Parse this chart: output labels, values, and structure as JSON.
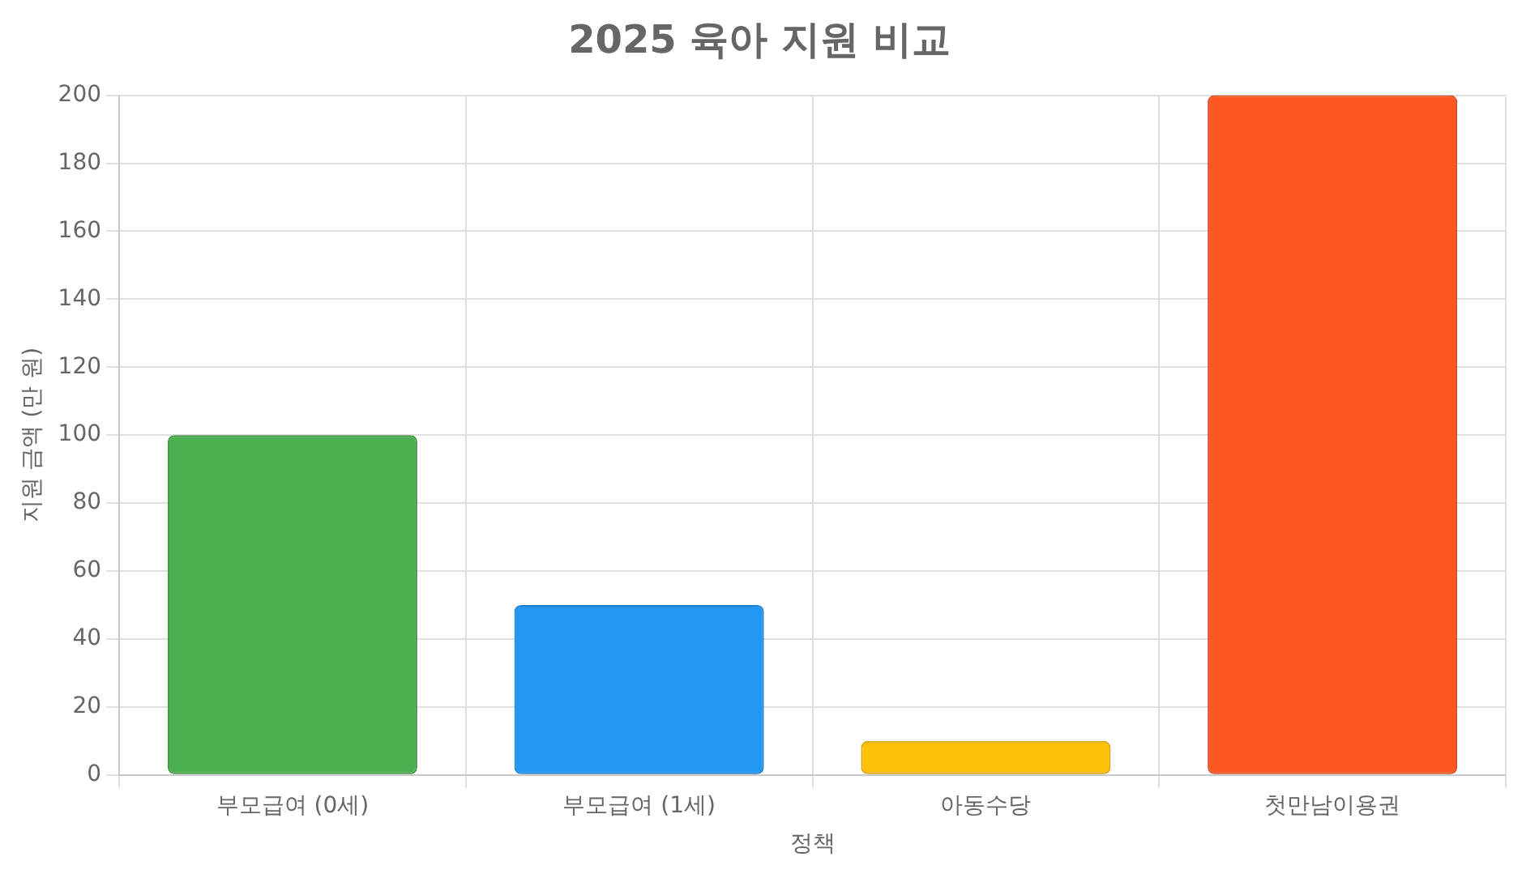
{
  "chart_data": {
    "type": "bar",
    "title": "2025 육아 지원 비교",
    "xlabel": "정책",
    "ylabel": "지원 금액 (만 원)",
    "categories": [
      "부모급여 (0세)",
      "부모급여 (1세)",
      "아동수당",
      "첫만남이용권"
    ],
    "values": [
      100,
      50,
      10,
      200
    ],
    "colors": [
      "#4caf50",
      "#2196f3",
      "#ffc107",
      "#ff5722"
    ],
    "ylim": [
      0,
      200
    ],
    "yticks": [
      0,
      20,
      40,
      60,
      80,
      100,
      120,
      140,
      160,
      180,
      200
    ],
    "grid": true,
    "legend": false
  }
}
